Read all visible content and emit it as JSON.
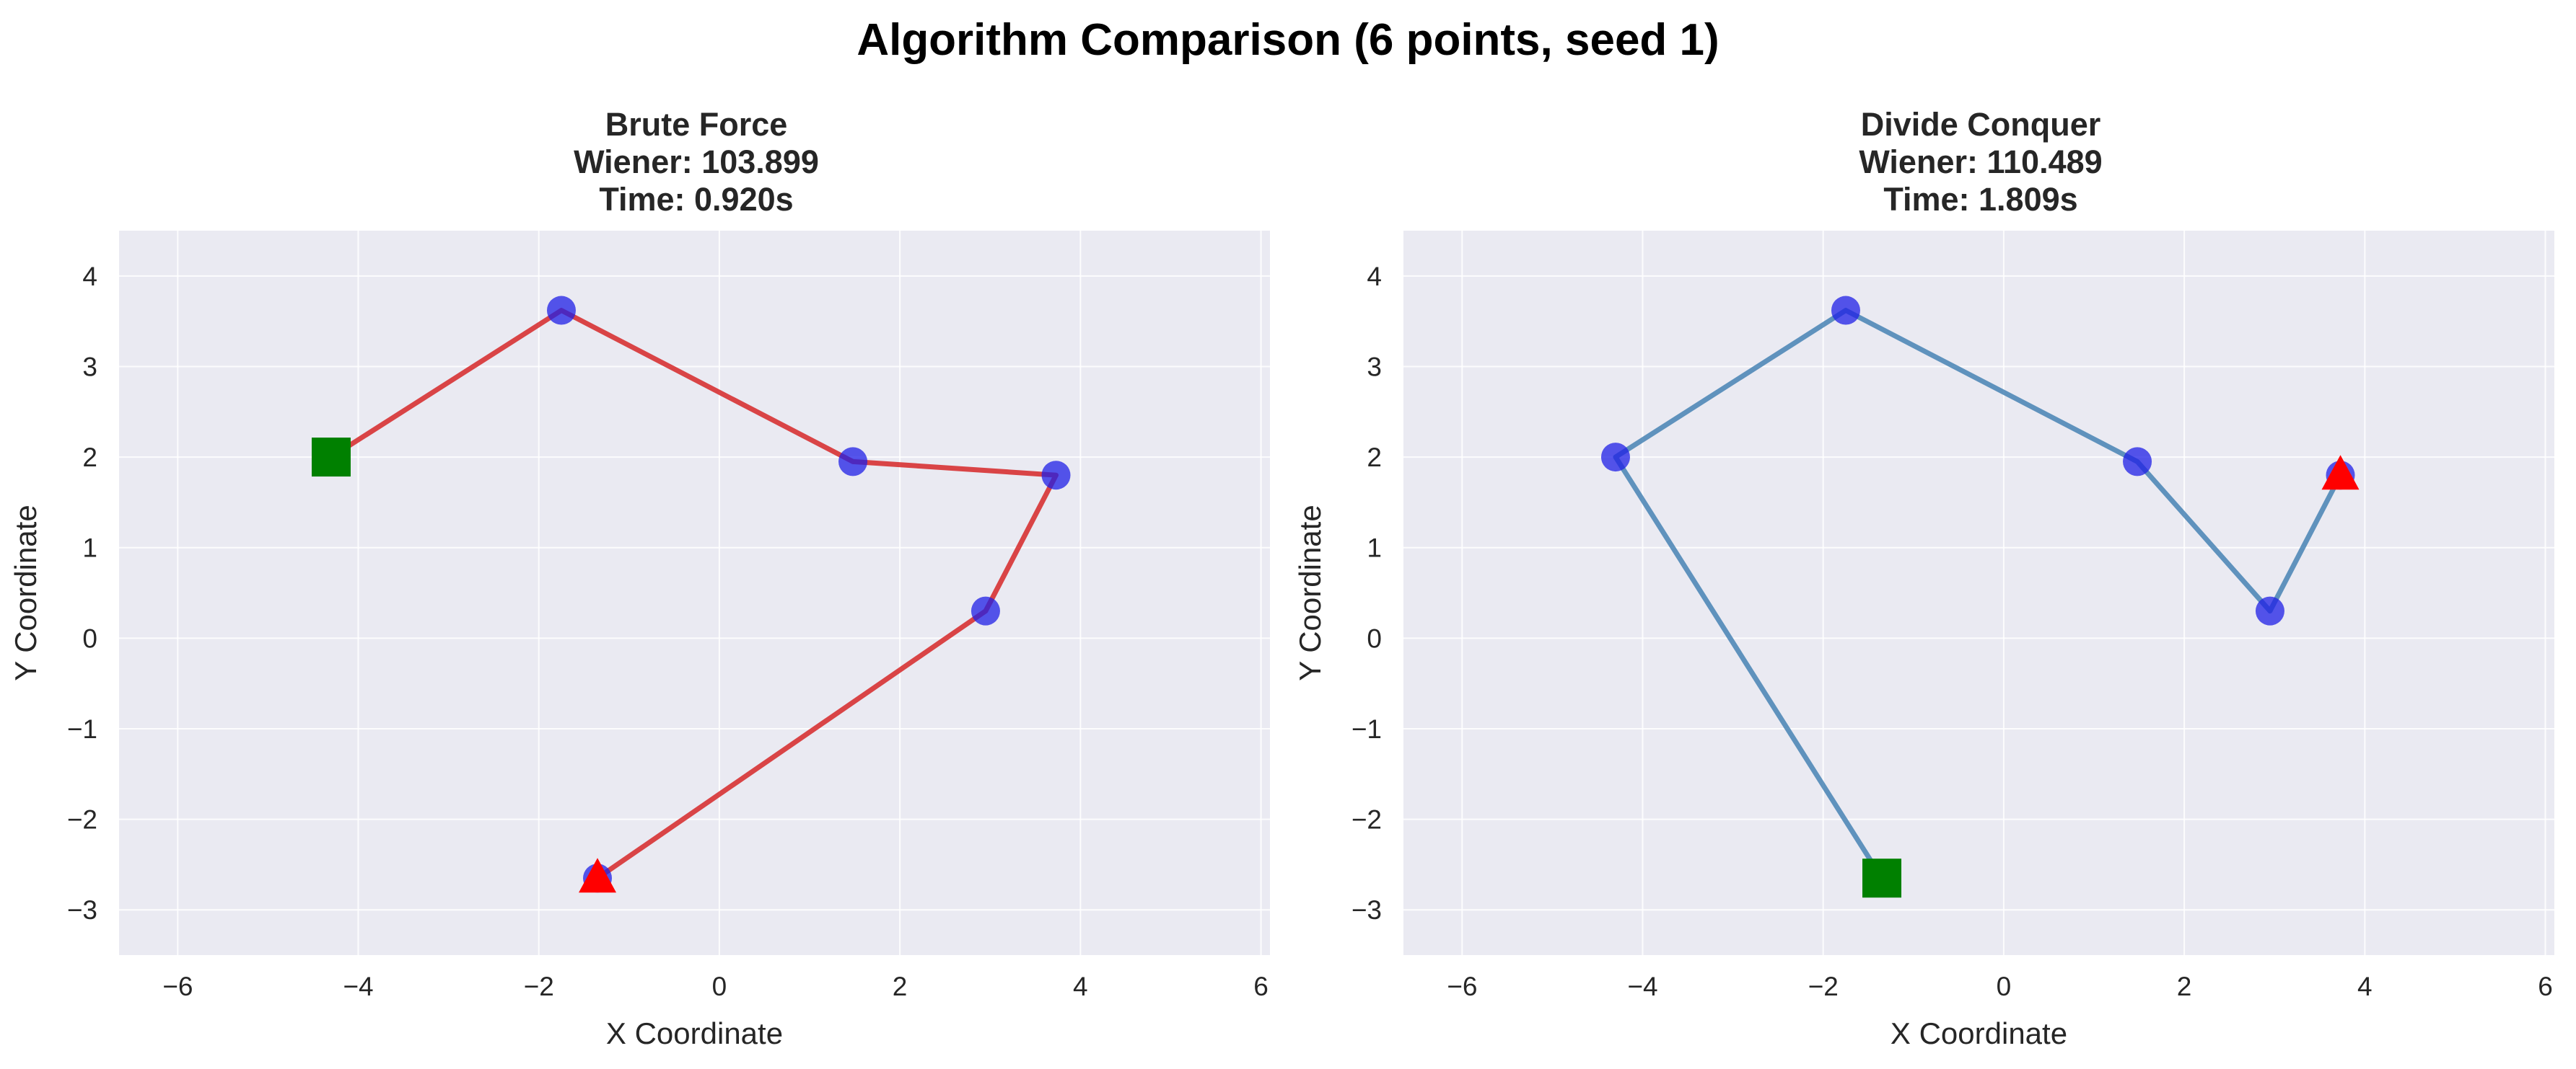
{
  "figure": {
    "title": "Algorithm Comparison (6 points, seed 1)"
  },
  "chart_data": [
    {
      "type": "line",
      "title_lines": [
        "Brute Force",
        "Wiener: 103.899",
        "Time: 0.920s"
      ],
      "xlabel": "X Coordinate",
      "ylabel": "Y Coordinate",
      "xlim": [
        -6.65,
        6.1
      ],
      "ylim": [
        -3.5,
        4.5
      ],
      "xticks": [
        -6,
        -4,
        -2,
        0,
        2,
        4,
        6
      ],
      "yticks": [
        -3,
        -2,
        -1,
        0,
        1,
        2,
        3,
        4
      ],
      "xtick_labels": [
        "−6",
        "−4",
        "−2",
        "0",
        "2",
        "4",
        "6"
      ],
      "ytick_labels": [
        "−3",
        "−2",
        "−1",
        "0",
        "1",
        "2",
        "3",
        "4"
      ],
      "grid": true,
      "path_color": "#d62728",
      "points": [
        {
          "x": -4.3,
          "y": 2.0
        },
        {
          "x": -1.75,
          "y": 3.62
        },
        {
          "x": 1.48,
          "y": 1.95
        },
        {
          "x": 3.73,
          "y": 1.8
        },
        {
          "x": 2.95,
          "y": 0.3
        },
        {
          "x": -1.35,
          "y": -2.65
        }
      ],
      "path": [
        0,
        1,
        2,
        3,
        4,
        5
      ],
      "start": 0,
      "end": 5
    },
    {
      "type": "line",
      "title_lines": [
        "Divide Conquer",
        "Wiener: 110.489",
        "Time: 1.809s"
      ],
      "xlabel": "X Coordinate",
      "ylabel": "Y Coordinate",
      "xlim": [
        -6.65,
        6.1
      ],
      "ylim": [
        -3.5,
        4.5
      ],
      "xticks": [
        -6,
        -4,
        -2,
        0,
        2,
        4,
        6
      ],
      "yticks": [
        -3,
        -2,
        -1,
        0,
        1,
        2,
        3,
        4
      ],
      "xtick_labels": [
        "−6",
        "−4",
        "−2",
        "0",
        "2",
        "4",
        "6"
      ],
      "ytick_labels": [
        "−3",
        "−2",
        "−1",
        "0",
        "1",
        "2",
        "3",
        "4"
      ],
      "grid": true,
      "path_color": "#4682b4",
      "points": [
        {
          "x": -4.3,
          "y": 2.0
        },
        {
          "x": -1.75,
          "y": 3.62
        },
        {
          "x": 1.48,
          "y": 1.95
        },
        {
          "x": 3.73,
          "y": 1.8
        },
        {
          "x": 2.95,
          "y": 0.3
        },
        {
          "x": -1.35,
          "y": -2.65
        }
      ],
      "path": [
        5,
        0,
        1,
        2,
        4,
        3
      ],
      "start": 5,
      "end": 3
    }
  ],
  "colors": {
    "axes_bg": "#eaeaf2",
    "point": "#1f1fe6",
    "start_marker": "#008000",
    "end_marker": "#ff0000"
  }
}
